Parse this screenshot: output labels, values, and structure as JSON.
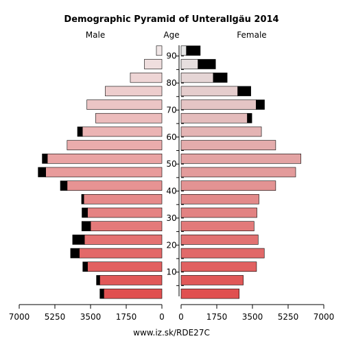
{
  "chart_data": {
    "type": "bar",
    "subtype": "population-pyramid",
    "title": "Demographic Pyramid of Unterallgäu 2014",
    "left_label": "Male",
    "center_label": "Age",
    "right_label": "Female",
    "footer": "www.iz.sk/RDE27C",
    "xlim": [
      0,
      7000
    ],
    "x_ticks": [
      0,
      1750,
      3500,
      5250,
      7000
    ],
    "x_tick_labels": [
      "0",
      "1750",
      "3500",
      "5250",
      "7000"
    ],
    "age_ticks": [
      10,
      20,
      30,
      40,
      50,
      60,
      70,
      80,
      90
    ],
    "age_groups": [
      "0-4",
      "5-9",
      "10-14",
      "15-19",
      "20-24",
      "25-29",
      "30-34",
      "35-39",
      "40-44",
      "45-49",
      "50-54",
      "55-59",
      "60-64",
      "65-69",
      "70-74",
      "75-79",
      "80-84",
      "85-89",
      "90+"
    ],
    "age_midpoints": [
      2,
      7,
      12,
      17,
      22,
      27,
      32,
      37,
      42,
      47,
      52,
      57,
      62,
      67,
      72,
      77,
      82,
      87,
      92
    ],
    "series": [
      {
        "name": "Male",
        "native": [
          2850,
          3050,
          3650,
          4050,
          3800,
          3500,
          3650,
          3830,
          4650,
          5700,
          5620,
          4650,
          3900,
          3250,
          3680,
          2780,
          1550,
          860,
          270
        ],
        "foreign": [
          190,
          160,
          230,
          430,
          580,
          430,
          270,
          110,
          330,
          370,
          250,
          0,
          240,
          0,
          0,
          0,
          0,
          0,
          0
        ]
      },
      {
        "name": "Female",
        "native": [
          2850,
          3050,
          3700,
          4080,
          3780,
          3580,
          3720,
          3820,
          4640,
          5620,
          5880,
          4640,
          3940,
          3250,
          3680,
          2780,
          1580,
          830,
          260
        ],
        "foreign": [
          0,
          0,
          0,
          0,
          0,
          0,
          0,
          0,
          0,
          0,
          0,
          0,
          0,
          220,
          410,
          640,
          680,
          860,
          680
        ]
      }
    ],
    "colors": {
      "male_young": "#e05050",
      "male_old": "#f0e6e6",
      "female_young": "#e05050",
      "female_old": "#e6e6e6",
      "foreign": "#000000",
      "axis": "#000000"
    }
  }
}
